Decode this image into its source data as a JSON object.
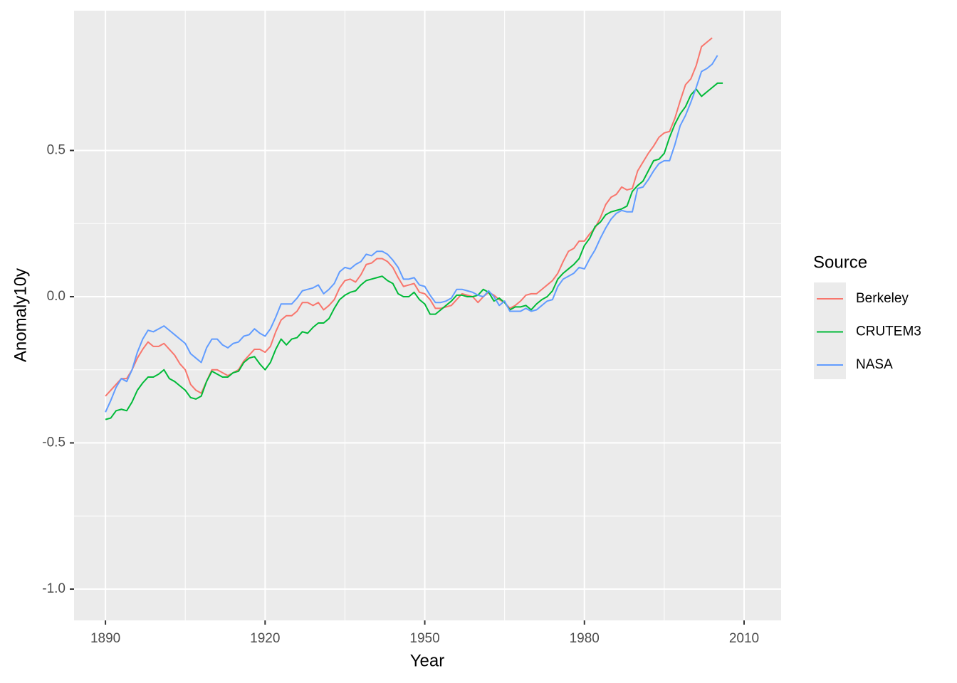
{
  "chart_data": {
    "type": "line",
    "x_label": "Year",
    "y_label": "Anomaly10y",
    "legend_title": "Source",
    "legend_position": "right",
    "grid": true,
    "xlim": [
      1884.1,
      2016.96
    ],
    "ylim": [
      -1.107,
      0.978
    ],
    "xticks": [
      1890,
      1920,
      1950,
      1980,
      2010
    ],
    "yticks": [
      {
        "value": -1.0,
        "label": "-1.0"
      },
      {
        "value": -0.5,
        "label": "-0.5"
      },
      {
        "value": 0.0,
        "label": "0.0"
      },
      {
        "value": 0.5,
        "label": "0.5"
      }
    ],
    "x": [
      1890,
      1891,
      1892,
      1893,
      1894,
      1895,
      1896,
      1897,
      1898,
      1899,
      1900,
      1901,
      1902,
      1903,
      1904,
      1905,
      1906,
      1907,
      1908,
      1909,
      1910,
      1911,
      1912,
      1913,
      1914,
      1915,
      1916,
      1917,
      1918,
      1919,
      1920,
      1921,
      1922,
      1923,
      1924,
      1925,
      1926,
      1927,
      1928,
      1929,
      1930,
      1931,
      1932,
      1933,
      1934,
      1935,
      1936,
      1937,
      1938,
      1939,
      1940,
      1941,
      1942,
      1943,
      1944,
      1945,
      1946,
      1947,
      1948,
      1949,
      1950,
      1951,
      1952,
      1953,
      1954,
      1955,
      1956,
      1957,
      1958,
      1959,
      1960,
      1961,
      1962,
      1963,
      1964,
      1965,
      1966,
      1967,
      1968,
      1969,
      1970,
      1971,
      1972,
      1973,
      1974,
      1975,
      1976,
      1977,
      1978,
      1979,
      1980,
      1981,
      1982,
      1983,
      1984,
      1985,
      1986,
      1987,
      1988,
      1989,
      1990,
      1991,
      1992,
      1993,
      1994,
      1995,
      1996,
      1997,
      1998,
      1999,
      2000,
      2001,
      2002,
      2003,
      2004,
      2005,
      2006
    ],
    "series": [
      {
        "name": "Berkeley",
        "color": "#F8766D",
        "values": [
          -0.34,
          -0.32,
          -0.3,
          -0.28,
          -0.28,
          -0.25,
          -0.21,
          -0.18,
          -0.155,
          -0.17,
          -0.17,
          -0.16,
          -0.18,
          -0.2,
          -0.23,
          -0.25,
          -0.3,
          -0.32,
          -0.33,
          -0.29,
          -0.25,
          -0.25,
          -0.26,
          -0.27,
          -0.26,
          -0.25,
          -0.22,
          -0.2,
          -0.18,
          -0.18,
          -0.19,
          -0.17,
          -0.12,
          -0.08,
          -0.065,
          -0.065,
          -0.05,
          -0.02,
          -0.02,
          -0.03,
          -0.02,
          -0.045,
          -0.03,
          -0.01,
          0.03,
          0.055,
          0.06,
          0.05,
          0.075,
          0.11,
          0.115,
          0.13,
          0.13,
          0.12,
          0.1,
          0.065,
          0.035,
          0.04,
          0.045,
          0.015,
          0.01,
          -0.01,
          -0.04,
          -0.04,
          -0.035,
          -0.03,
          -0.01,
          0.01,
          0.005,
          0.0,
          -0.02,
          0.0,
          0.015,
          0.005,
          -0.01,
          -0.02,
          -0.04,
          -0.03,
          -0.015,
          0.005,
          0.01,
          0.01,
          0.025,
          0.04,
          0.055,
          0.08,
          0.12,
          0.155,
          0.165,
          0.19,
          0.19,
          0.215,
          0.235,
          0.27,
          0.315,
          0.34,
          0.35,
          0.375,
          0.365,
          0.37,
          0.43,
          0.46,
          0.49,
          0.515,
          0.545,
          0.56,
          0.565,
          0.61,
          0.67,
          0.725,
          0.745,
          0.79,
          0.855,
          0.87,
          0.885,
          null,
          null
        ]
      },
      {
        "name": "CRUTEM3",
        "color": "#00BA38",
        "values": [
          -0.42,
          -0.415,
          -0.39,
          -0.385,
          -0.39,
          -0.36,
          -0.32,
          -0.295,
          -0.275,
          -0.275,
          -0.265,
          -0.25,
          -0.28,
          -0.29,
          -0.305,
          -0.32,
          -0.345,
          -0.35,
          -0.34,
          -0.29,
          -0.255,
          -0.265,
          -0.275,
          -0.275,
          -0.26,
          -0.255,
          -0.225,
          -0.21,
          -0.205,
          -0.23,
          -0.25,
          -0.225,
          -0.18,
          -0.145,
          -0.165,
          -0.145,
          -0.14,
          -0.12,
          -0.125,
          -0.105,
          -0.09,
          -0.09,
          -0.075,
          -0.04,
          -0.01,
          0.005,
          0.015,
          0.02,
          0.04,
          0.055,
          0.06,
          0.065,
          0.07,
          0.055,
          0.045,
          0.01,
          0.0,
          0.0,
          0.015,
          -0.01,
          -0.025,
          -0.06,
          -0.06,
          -0.045,
          -0.03,
          -0.015,
          0.005,
          0.005,
          0.0,
          0.0,
          0.005,
          0.025,
          0.015,
          -0.015,
          -0.005,
          -0.02,
          -0.045,
          -0.035,
          -0.035,
          -0.03,
          -0.045,
          -0.025,
          -0.01,
          0.0,
          0.02,
          0.06,
          0.08,
          0.095,
          0.11,
          0.13,
          0.175,
          0.2,
          0.24,
          0.255,
          0.28,
          0.29,
          0.295,
          0.3,
          0.31,
          0.36,
          0.38,
          0.395,
          0.43,
          0.465,
          0.47,
          0.49,
          0.545,
          0.59,
          0.625,
          0.65,
          0.69,
          0.71,
          0.685,
          0.7,
          0.715,
          0.73,
          0.73
        ]
      },
      {
        "name": "NASA",
        "color": "#619CFF",
        "values": [
          -0.395,
          -0.355,
          -0.31,
          -0.28,
          -0.29,
          -0.25,
          -0.19,
          -0.145,
          -0.115,
          -0.12,
          -0.11,
          -0.1,
          -0.115,
          -0.13,
          -0.145,
          -0.16,
          -0.195,
          -0.21,
          -0.225,
          -0.175,
          -0.145,
          -0.145,
          -0.165,
          -0.175,
          -0.16,
          -0.155,
          -0.135,
          -0.13,
          -0.11,
          -0.125,
          -0.135,
          -0.11,
          -0.07,
          -0.025,
          -0.025,
          -0.025,
          -0.005,
          0.02,
          0.025,
          0.03,
          0.04,
          0.01,
          0.025,
          0.045,
          0.085,
          0.1,
          0.095,
          0.11,
          0.12,
          0.145,
          0.14,
          0.155,
          0.155,
          0.145,
          0.125,
          0.1,
          0.06,
          0.06,
          0.065,
          0.04,
          0.035,
          0.005,
          -0.02,
          -0.02,
          -0.015,
          -0.005,
          0.025,
          0.025,
          0.02,
          0.015,
          0.005,
          0.0,
          0.02,
          0.0,
          -0.03,
          -0.015,
          -0.05,
          -0.05,
          -0.05,
          -0.04,
          -0.05,
          -0.045,
          -0.03,
          -0.015,
          -0.01,
          0.035,
          0.06,
          0.07,
          0.08,
          0.1,
          0.095,
          0.13,
          0.16,
          0.2,
          0.235,
          0.265,
          0.285,
          0.295,
          0.29,
          0.29,
          0.37,
          0.375,
          0.4,
          0.43,
          0.455,
          0.465,
          0.465,
          0.52,
          0.585,
          0.62,
          0.665,
          0.715,
          0.77,
          0.78,
          0.795,
          0.825,
          null
        ]
      }
    ]
  }
}
